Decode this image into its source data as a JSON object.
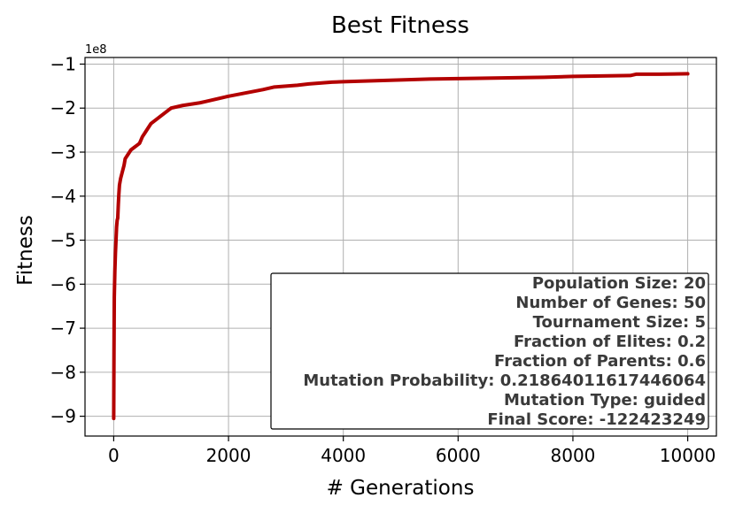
{
  "chart_data": {
    "type": "line",
    "title": "Best Fitness",
    "xlabel": "# Generations",
    "ylabel": "Fitness",
    "y_offset_label": "1e8",
    "xlim": [
      -500,
      10500
    ],
    "ylim": [
      -9.45,
      -0.85
    ],
    "x_ticks": [
      0,
      2000,
      4000,
      6000,
      8000,
      10000
    ],
    "y_ticks": [
      -9,
      -8,
      -7,
      -6,
      -5,
      -4,
      -3,
      -2,
      -1
    ],
    "x_tick_labels": [
      "0",
      "2000",
      "4000",
      "6000",
      "8000",
      "10000"
    ],
    "y_tick_labels": [
      "−9",
      "−8",
      "−7",
      "−6",
      "−5",
      "−4",
      "−3",
      "−2",
      "−1"
    ],
    "grid": true,
    "line_color": "#b30000",
    "series": [
      {
        "x": [
          0,
          5,
          10,
          20,
          30,
          40,
          50,
          60,
          70,
          80,
          90,
          100,
          120,
          150,
          180,
          200,
          250,
          300,
          350,
          400,
          450,
          500,
          550,
          600,
          650,
          700,
          750,
          800,
          850,
          900,
          950,
          1000,
          1100,
          1200,
          1300,
          1400,
          1500,
          1600,
          1700,
          1800,
          1900,
          2000,
          2200,
          2400,
          2600,
          2800,
          3000,
          3200,
          3400,
          3600,
          3800,
          4000,
          4500,
          5000,
          5500,
          6000,
          6500,
          7000,
          7500,
          8000,
          8500,
          9000,
          9100,
          9500,
          10000
        ],
        "y": [
          -9.05,
          -7.5,
          -6.3,
          -5.7,
          -5.3,
          -5.0,
          -4.7,
          -4.55,
          -4.5,
          -4.2,
          -3.95,
          -3.75,
          -3.6,
          -3.45,
          -3.3,
          -3.15,
          -3.05,
          -2.95,
          -2.9,
          -2.85,
          -2.8,
          -2.65,
          -2.55,
          -2.45,
          -2.35,
          -2.3,
          -2.25,
          -2.2,
          -2.15,
          -2.1,
          -2.05,
          -2.0,
          -1.97,
          -1.94,
          -1.92,
          -1.9,
          -1.88,
          -1.85,
          -1.82,
          -1.79,
          -1.76,
          -1.73,
          -1.68,
          -1.63,
          -1.58,
          -1.52,
          -1.5,
          -1.48,
          -1.45,
          -1.43,
          -1.41,
          -1.4,
          -1.38,
          -1.36,
          -1.34,
          -1.33,
          -1.32,
          -1.31,
          -1.3,
          -1.28,
          -1.27,
          -1.26,
          -1.23,
          -1.23,
          -1.22
        ]
      }
    ],
    "legend_box": {
      "placement": "bottom-right",
      "lines": [
        "Population Size: 20",
        "Number of Genes: 50",
        "Tournament Size: 5",
        "Fraction of Elites: 0.2",
        "Fraction of Parents: 0.6",
        "Mutation Probability: 0.21864011617446064",
        "Mutation Type: guided",
        "Final Score: -122423249"
      ]
    }
  }
}
